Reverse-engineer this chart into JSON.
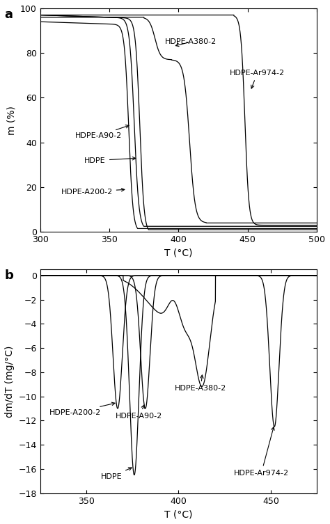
{
  "fig_width": 4.74,
  "fig_height": 7.53,
  "dpi": 100,
  "background_color": "#ffffff",
  "panel_a": {
    "xlabel": "T (°C)",
    "ylabel": "m (%)",
    "xlim": [
      300,
      500
    ],
    "ylim": [
      0,
      100
    ],
    "xticks": [
      300,
      350,
      400,
      450,
      500
    ],
    "yticks": [
      0,
      20,
      40,
      60,
      80,
      100
    ],
    "label": "a"
  },
  "panel_b": {
    "xlabel": "T (°C)",
    "ylabel": "dm/dT (mg/°C)",
    "xlim": [
      325,
      475
    ],
    "ylim": [
      -18,
      0.5
    ],
    "xticks": [
      350,
      400,
      450
    ],
    "yticks": [
      0,
      -2,
      -4,
      -6,
      -8,
      -10,
      -12,
      -14,
      -16,
      -18
    ],
    "label": "b"
  }
}
